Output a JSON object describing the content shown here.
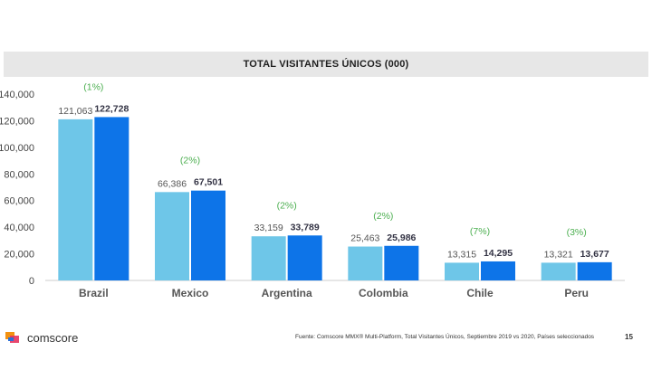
{
  "chart_data": {
    "type": "bar",
    "title": "TOTAL VISITANTES ÚNICOS (000)",
    "categories": [
      "Brazil",
      "Mexico",
      "Argentina",
      "Colombia",
      "Chile",
      "Peru"
    ],
    "series": [
      {
        "values": [
          121063,
          66386,
          33159,
          25463,
          13315,
          13321
        ],
        "value_labels": [
          "121,063",
          "66,386",
          "33,159",
          "25,463",
          "13,315",
          "13,321"
        ],
        "color": "#6ec6e8"
      },
      {
        "values": [
          122728,
          67501,
          33789,
          25986,
          14295,
          13677
        ],
        "value_labels": [
          "122,728",
          "67,501",
          "33,789",
          "25,986",
          "14,295",
          "13,677"
        ],
        "color": "#0d74e8"
      }
    ],
    "growth_labels": [
      "(1%)",
      "(2%)",
      "(2%)",
      "(2%)",
      "(7%)",
      "(3%)"
    ],
    "growth_color": "#4caf50",
    "ylim": [
      0,
      140000
    ],
    "yticks": [
      0,
      20000,
      40000,
      60000,
      80000,
      100000,
      120000,
      140000
    ],
    "ytick_labels": [
      "0",
      "20,000",
      "40,000",
      "60,000",
      "80,000",
      "100,000",
      "120,000",
      "140,000"
    ],
    "grid": false,
    "legend": "none"
  },
  "footer": {
    "brand": "comscore",
    "source": "Fuente: Comscore MMX® Multi-Platform, Total Visitantes Únicos, Septiembre 2019 vs 2020, Países seleccionados",
    "page_number": "15"
  }
}
